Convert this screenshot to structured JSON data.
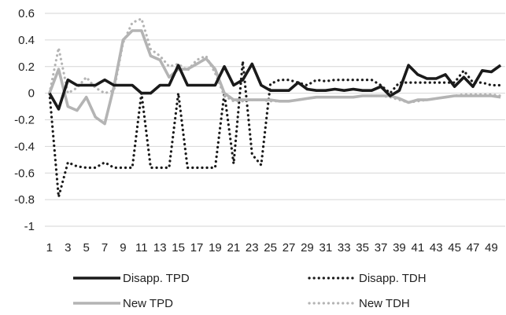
{
  "chart_data": {
    "type": "line",
    "title": "",
    "xlabel": "",
    "ylabel": "",
    "x": [
      1,
      2,
      3,
      4,
      5,
      6,
      7,
      8,
      9,
      10,
      11,
      12,
      13,
      14,
      15,
      16,
      17,
      18,
      19,
      20,
      21,
      22,
      23,
      24,
      25,
      26,
      27,
      28,
      29,
      30,
      31,
      32,
      33,
      34,
      35,
      36,
      37,
      38,
      39,
      40,
      41,
      42,
      43,
      44,
      45,
      46,
      47,
      48,
      49,
      50
    ],
    "x_tick_labels": [
      "1",
      "3",
      "5",
      "7",
      "9",
      "11",
      "13",
      "15",
      "17",
      "19",
      "21",
      "23",
      "25",
      "27",
      "29",
      "31",
      "33",
      "35",
      "37",
      "39",
      "41",
      "43",
      "45",
      "47",
      "49"
    ],
    "ylim": [
      -1,
      0.6
    ],
    "y_ticks": [
      0.6,
      0.4,
      0.2,
      0,
      -0.2,
      -0.4,
      -0.6,
      -0.8,
      -1
    ],
    "y_tick_labels": [
      "0.6",
      "0.4",
      "0.2",
      "0",
      "-0.2",
      "-0.4",
      "-0.6",
      "-0.8",
      "-1"
    ],
    "grid": "horizontal",
    "legend_position": "bottom",
    "series": [
      {
        "name": "Disapp. TPD",
        "color": "#1a1a1a",
        "style": "solid",
        "values": [
          0,
          -0.12,
          0.1,
          0.06,
          0.06,
          0.06,
          0.1,
          0.06,
          0.06,
          0.06,
          0,
          0,
          0.06,
          0.06,
          0.21,
          0.06,
          0.06,
          0.06,
          0.06,
          0.2,
          0.06,
          0.1,
          0.22,
          0.06,
          0.02,
          0.02,
          0.02,
          0.08,
          0.03,
          0.02,
          0.02,
          0.03,
          0.02,
          0.03,
          0.02,
          0.02,
          0.05,
          -0.02,
          0.02,
          0.21,
          0.14,
          0.11,
          0.11,
          0.14,
          0.05,
          0.12,
          0.05,
          0.17,
          0.16,
          0.21
        ]
      },
      {
        "name": "Disapp. TDH",
        "color": "#1a1a1a",
        "style": "dotted",
        "values": [
          0,
          -0.78,
          -0.52,
          -0.55,
          -0.56,
          -0.56,
          -0.52,
          -0.56,
          -0.56,
          -0.56,
          0,
          -0.56,
          -0.56,
          -0.56,
          0,
          -0.56,
          -0.56,
          -0.56,
          -0.56,
          0,
          -0.53,
          0.24,
          -0.46,
          -0.54,
          0.07,
          0.1,
          0.1,
          0.08,
          0.06,
          0.1,
          0.09,
          0.1,
          0.1,
          0.1,
          0.1,
          0.1,
          0.06,
          0,
          0.08,
          0.08,
          0.08,
          0.08,
          0.08,
          0.08,
          0.08,
          0.17,
          0.08,
          0.08,
          0.06,
          0.06
        ]
      },
      {
        "name": "New TPD",
        "color": "#b4b4b4",
        "style": "solid",
        "values": [
          0,
          0.18,
          -0.1,
          -0.13,
          -0.03,
          -0.18,
          -0.23,
          0.05,
          0.4,
          0.47,
          0.47,
          0.28,
          0.25,
          0.12,
          0.18,
          0.18,
          0.22,
          0.26,
          0.18,
          0,
          -0.05,
          -0.05,
          -0.05,
          -0.05,
          -0.05,
          -0.06,
          -0.06,
          -0.05,
          -0.04,
          -0.03,
          -0.03,
          -0.03,
          -0.03,
          -0.03,
          -0.02,
          -0.02,
          -0.02,
          -0.02,
          -0.04,
          -0.07,
          -0.05,
          -0.05,
          -0.04,
          -0.03,
          -0.02,
          -0.02,
          -0.02,
          -0.02,
          -0.02,
          -0.03
        ]
      },
      {
        "name": "New TDH",
        "color": "#b4b4b4",
        "style": "dotted",
        "values": [
          0,
          0.34,
          0,
          0.04,
          0.12,
          0.04,
          0,
          0.02,
          0.38,
          0.53,
          0.56,
          0.33,
          0.28,
          0.2,
          0.22,
          0.17,
          0.25,
          0.28,
          0.15,
          -0.02,
          -0.06,
          -0.06,
          -0.05,
          -0.05,
          -0.06,
          -0.06,
          -0.06,
          -0.05,
          -0.04,
          -0.03,
          -0.03,
          -0.03,
          -0.03,
          -0.03,
          -0.02,
          -0.02,
          -0.02,
          -0.03,
          -0.05,
          -0.07,
          -0.06,
          -0.05,
          -0.04,
          -0.03,
          -0.02,
          -0.01,
          -0.01,
          -0.01,
          -0.01,
          -0.02
        ]
      }
    ]
  }
}
